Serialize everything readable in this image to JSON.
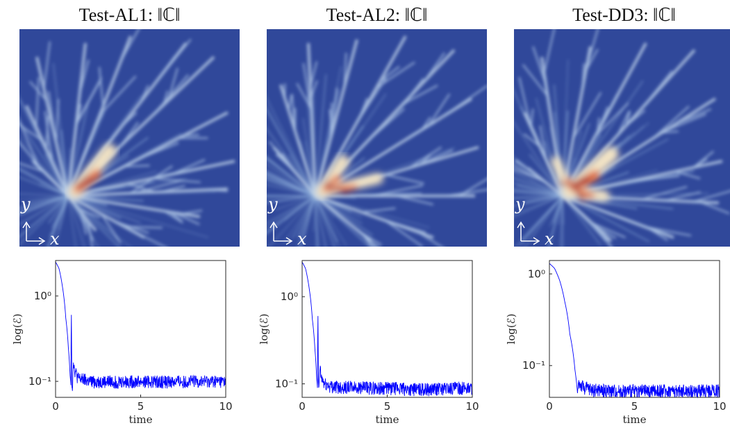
{
  "colors": {
    "heatmap_bg": "#30489a",
    "line": "#0000ff",
    "axis": "#262626"
  },
  "panels": [
    {
      "title": "Test-AL1: ‖ℂ‖",
      "field_label": "‖ℂ‖",
      "axis_x_label": "x",
      "axis_y_label": "y",
      "colormap": "jet",
      "seed": 11
    },
    {
      "title": "Test-AL2: ‖ℂ‖",
      "field_label": "‖ℂ‖",
      "axis_x_label": "x",
      "axis_y_label": "y",
      "colormap": "jet",
      "seed": 23
    },
    {
      "title": "Test-DD3: ‖ℂ‖",
      "field_label": "‖ℂ‖",
      "axis_x_label": "x",
      "axis_y_label": "y",
      "colormap": "jet",
      "seed": 37
    }
  ],
  "chart_data": [
    {
      "type": "line",
      "xlabel": "time",
      "ylabel": "log(ℰ)",
      "xlim": [
        0,
        10
      ],
      "yscale": "log",
      "ylim": [
        0.065,
        2.6
      ],
      "xticks": [
        0,
        5,
        10
      ],
      "ytick_labels": [
        "10⁰",
        "10⁻¹"
      ],
      "ytick_values": [
        1,
        0.1
      ],
      "grid": false,
      "series": [
        {
          "x": [
            0,
            0.2,
            0.4,
            0.6,
            0.75,
            0.85,
            0.9,
            0.93,
            0.95,
            0.97,
            1.0,
            1.05,
            1.1,
            1.3,
            1.6,
            2,
            3,
            4,
            5,
            6,
            7,
            8,
            9,
            10
          ],
          "y": [
            2.5,
            2.1,
            1.3,
            0.55,
            0.25,
            0.12,
            0.09,
            0.6,
            0.1,
            0.09,
            0.09,
            0.18,
            0.14,
            0.11,
            0.105,
            0.1,
            0.1,
            0.1,
            0.1,
            0.1,
            0.1,
            0.1,
            0.1,
            0.1
          ]
        }
      ]
    },
    {
      "type": "line",
      "xlabel": "time",
      "ylabel": "log(ℰ)",
      "xlim": [
        0,
        10
      ],
      "yscale": "log",
      "ylim": [
        0.07,
        2.6
      ],
      "xticks": [
        0,
        5,
        10
      ],
      "ytick_labels": [
        "10⁰",
        "10⁻¹"
      ],
      "ytick_values": [
        1,
        0.1
      ],
      "grid": false,
      "series": [
        {
          "x": [
            0,
            0.2,
            0.4,
            0.6,
            0.75,
            0.85,
            0.9,
            0.93,
            0.95,
            0.97,
            1.0,
            1.05,
            1.1,
            1.3,
            1.6,
            2,
            3,
            4,
            5,
            6,
            7,
            8,
            9,
            10
          ],
          "y": [
            2.5,
            2.1,
            1.3,
            0.55,
            0.25,
            0.12,
            0.09,
            0.6,
            0.1,
            0.09,
            0.09,
            0.16,
            0.12,
            0.1,
            0.095,
            0.093,
            0.092,
            0.09,
            0.09,
            0.088,
            0.087,
            0.088,
            0.09,
            0.09
          ]
        }
      ]
    },
    {
      "type": "line",
      "xlabel": "time",
      "ylabel": "log(ℰ)",
      "xlim": [
        0,
        10
      ],
      "yscale": "log",
      "ylim": [
        0.045,
        1.4
      ],
      "xticks": [
        0,
        5,
        10
      ],
      "ytick_labels": [
        "10⁰",
        "10⁻¹"
      ],
      "ytick_values": [
        1,
        0.1
      ],
      "grid": false,
      "series": [
        {
          "x": [
            0,
            0.3,
            0.6,
            0.9,
            1.2,
            1.5,
            1.65,
            1.7,
            1.8,
            2.0,
            2.5,
            3,
            4,
            5,
            6,
            7,
            8,
            9,
            10
          ],
          "y": [
            1.3,
            1.15,
            0.85,
            0.5,
            0.22,
            0.09,
            0.05,
            0.065,
            0.062,
            0.058,
            0.055,
            0.054,
            0.053,
            0.053,
            0.053,
            0.053,
            0.053,
            0.053,
            0.054
          ]
        }
      ]
    }
  ]
}
